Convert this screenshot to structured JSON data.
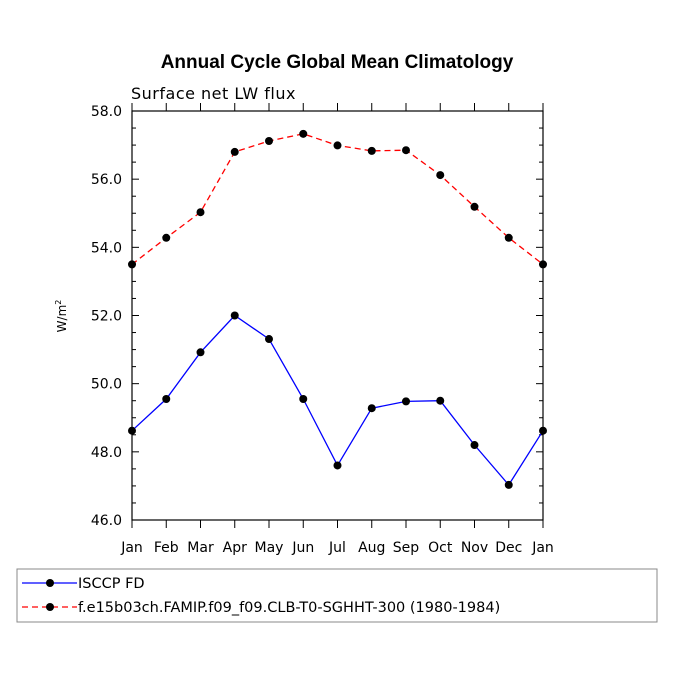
{
  "chart_data": {
    "type": "line",
    "title": "Annual Cycle Global Mean Climatology",
    "subtitle": "Surface net LW flux",
    "xlabel": "",
    "ylabel": "W/m",
    "ylabel_sup": "2",
    "categories": [
      "Jan",
      "Feb",
      "Mar",
      "Apr",
      "May",
      "Jun",
      "Jul",
      "Aug",
      "Sep",
      "Oct",
      "Nov",
      "Dec",
      "Jan"
    ],
    "ylim": [
      46.0,
      58.0
    ],
    "yticks": [
      46.0,
      48.0,
      50.0,
      52.0,
      54.0,
      56.0,
      58.0
    ],
    "ytick_labels": [
      "46.0",
      "48.0",
      "50.0",
      "52.0",
      "54.0",
      "56.0",
      "58.0"
    ],
    "legend_position": "bottom-left",
    "series": [
      {
        "name": "ISCCP FD",
        "color": "#0000ff",
        "dash": "solid",
        "values": [
          48.62,
          49.55,
          50.92,
          52.0,
          51.31,
          49.55,
          47.6,
          49.28,
          49.48,
          49.5,
          48.2,
          47.03,
          48.62
        ]
      },
      {
        "name": "f.e15b03ch.FAMIP.f09_f09.CLB-T0-SGHHT-300 (1980-1984)",
        "color": "#ff0000",
        "dash": "dashed",
        "values": [
          53.5,
          54.28,
          55.03,
          56.8,
          57.12,
          57.33,
          56.99,
          56.83,
          56.85,
          56.12,
          55.19,
          54.28,
          53.5
        ]
      }
    ]
  }
}
